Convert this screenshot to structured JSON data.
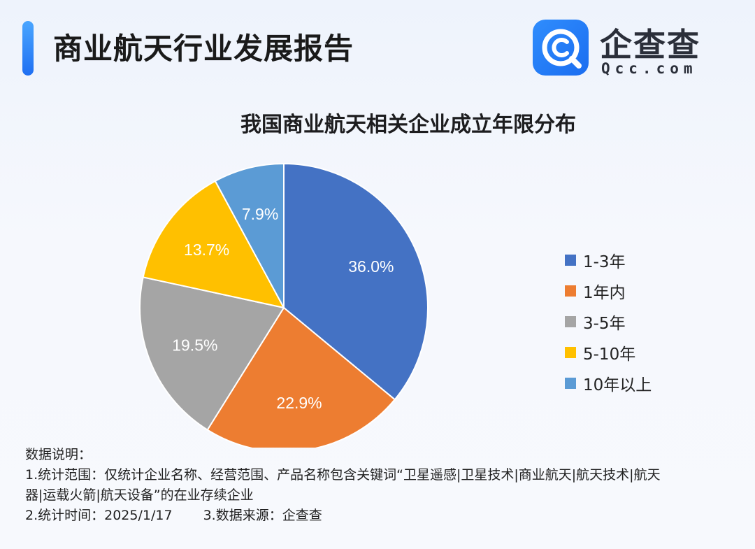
{
  "header": {
    "title": "商业航天行业发展报告",
    "brand_name": "企查查",
    "brand_domain": "Qcc.com"
  },
  "chart_data": {
    "type": "pie",
    "title": "我国商业航天相关企业成立年限分布",
    "categories": [
      "1-3年",
      "1年内",
      "3-5年",
      "5-10年",
      "10年以上"
    ],
    "values": [
      36.0,
      22.9,
      19.5,
      13.7,
      7.9
    ],
    "value_labels": [
      "36.0%",
      "22.9%",
      "19.5%",
      "13.7%",
      "7.9%"
    ],
    "colors": [
      "#4472c4",
      "#ed7d31",
      "#a5a5a5",
      "#ffc000",
      "#5b9bd5"
    ],
    "legend_position": "right",
    "start": "top, clockwise"
  },
  "notes": {
    "heading": "数据说明：",
    "scope_line1": "1.统计范围：仅统计企业名称、经营范围、产品名称包含关键词“卫星遥感|卫星技术|商业航天|航天技术|航天",
    "scope_line2": "器|运载火箭|航天设备”的在业存续企业",
    "time": "2.统计时间：2025/1/17",
    "source": "3.数据来源：企查查"
  },
  "colors": {
    "accent": "#1f6ff2",
    "logo": "#2f8dfd"
  }
}
